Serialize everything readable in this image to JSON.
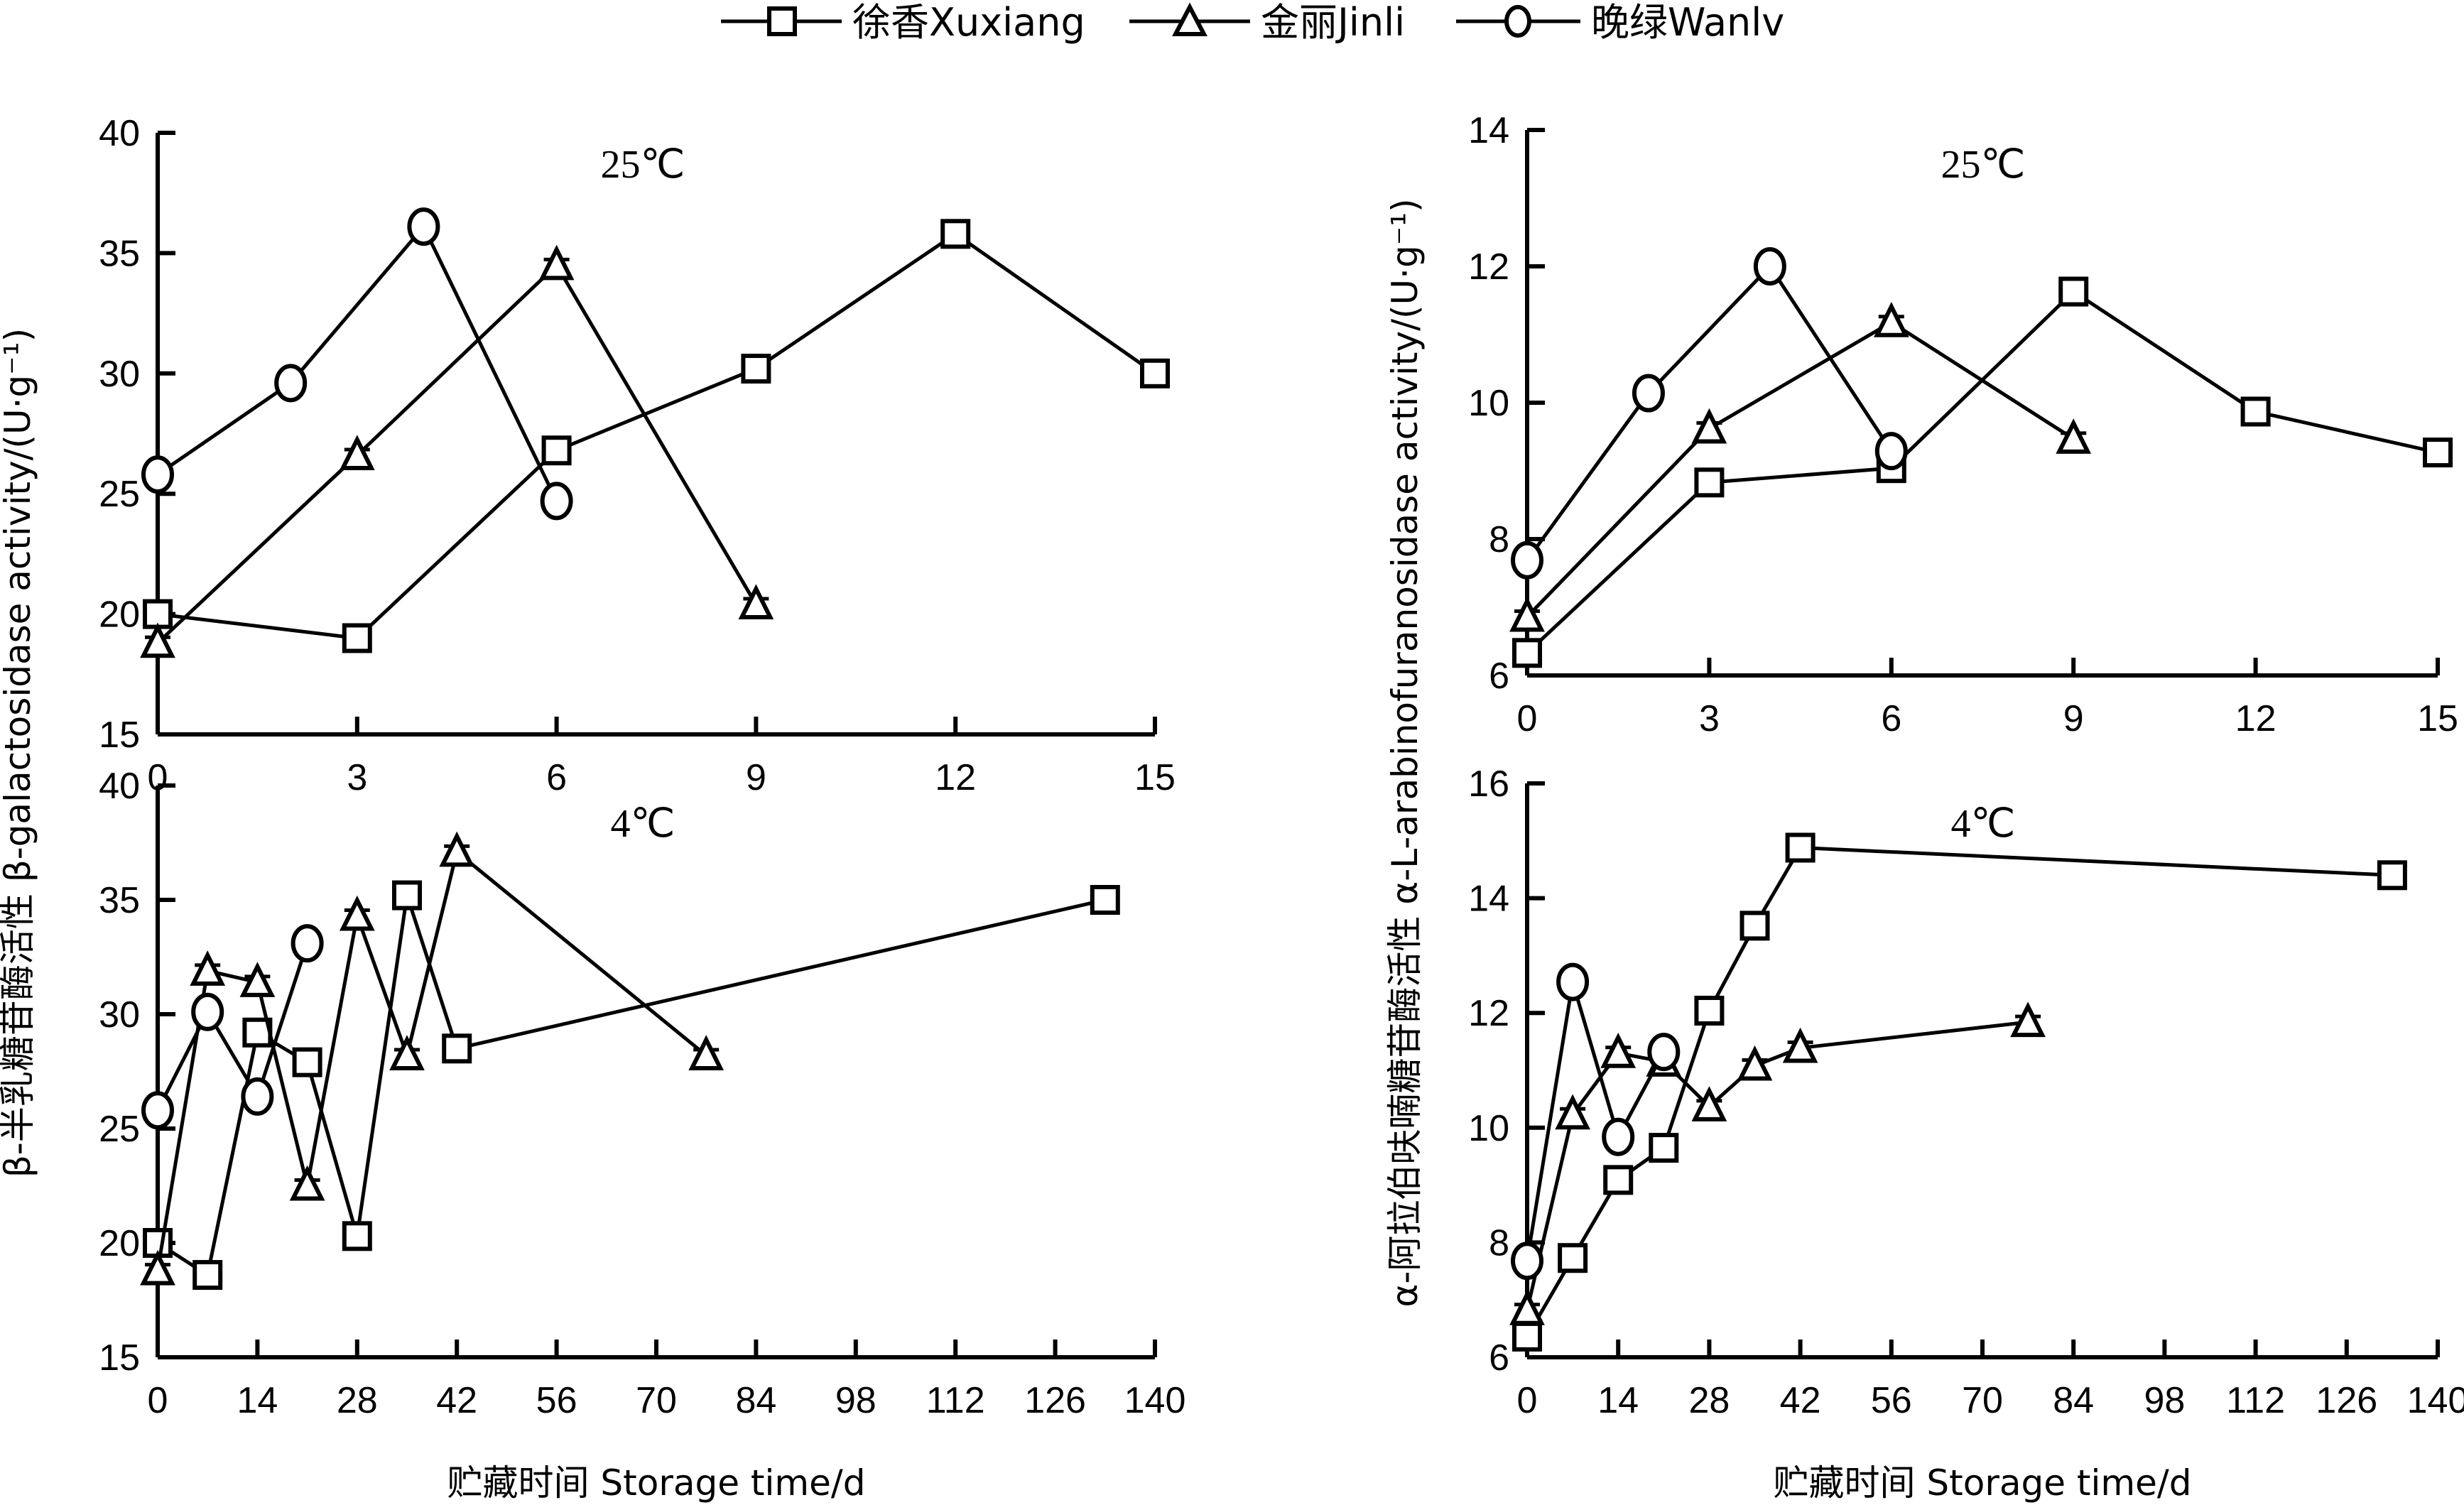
{
  "legend": {
    "items": [
      {
        "label": "徐香Xuxiang",
        "marker": "square"
      },
      {
        "label": "金丽Jinli",
        "marker": "triangle"
      },
      {
        "label": "晚绿Wanlv",
        "marker": "circle"
      }
    ]
  },
  "ylabels": {
    "left": "β-半乳糖苷酶活性 β-galactosidase activity/(U·g⁻¹)",
    "right": "α-阿拉伯呋喃糖苷酶活性 α-L-arabinofuranosidase activity/(U·g⁻¹)"
  },
  "xlabel": "贮藏时间 Storage time/d",
  "chart_data": [
    {
      "id": "tl",
      "type": "line",
      "title": "25℃",
      "xlabel": "",
      "ylabel": "β-galactosidase activity/(U·g⁻¹)",
      "xlim": [
        0,
        15
      ],
      "ylim": [
        15,
        40
      ],
      "xticks": [
        0,
        3,
        6,
        9,
        12,
        15
      ],
      "yticks": [
        15,
        20,
        25,
        30,
        35,
        40
      ],
      "grid": false,
      "series": [
        {
          "name": "徐香Xuxiang",
          "marker": "square",
          "x": [
            0,
            3,
            6,
            9,
            12,
            15
          ],
          "y": [
            20.0,
            19.0,
            26.8,
            30.2,
            35.8,
            30.0
          ]
        },
        {
          "name": "金丽Jinli",
          "marker": "triangle",
          "x": [
            0,
            3,
            6,
            9
          ],
          "y": [
            18.8,
            26.6,
            34.5,
            20.4
          ]
        },
        {
          "name": "晚绿Wanlv",
          "marker": "circle",
          "x": [
            0,
            2,
            4,
            6
          ],
          "y": [
            25.8,
            29.6,
            36.1,
            24.7
          ]
        }
      ]
    },
    {
      "id": "tr",
      "type": "line",
      "title": "25℃",
      "xlabel": "",
      "ylabel": "α-L-arabinofuranosidase activity/(U·g⁻¹)",
      "xlim": [
        0,
        15
      ],
      "ylim": [
        6,
        14
      ],
      "xticks": [
        0,
        3,
        6,
        9,
        12,
        15
      ],
      "yticks": [
        6,
        8,
        10,
        12,
        14
      ],
      "grid": false,
      "series": [
        {
          "name": "徐香Xuxiang",
          "marker": "square",
          "x": [
            0,
            3,
            6,
            9,
            12,
            15
          ],
          "y": [
            6.33,
            8.83,
            9.04,
            11.63,
            9.87,
            9.27
          ]
        },
        {
          "name": "金丽Jinli",
          "marker": "triangle",
          "x": [
            0,
            3,
            6,
            9
          ],
          "y": [
            6.86,
            9.62,
            11.18,
            9.47
          ]
        },
        {
          "name": "晚绿Wanlv",
          "marker": "circle",
          "x": [
            0,
            2,
            4,
            6
          ],
          "y": [
            7.69,
            10.14,
            12.0,
            9.29
          ]
        }
      ]
    },
    {
      "id": "bl",
      "type": "line",
      "title": "4℃",
      "xlabel": "贮藏时间 Storage time/d",
      "ylabel": "β-galactosidase activity/(U·g⁻¹)",
      "xlim": [
        0,
        140
      ],
      "ylim": [
        15,
        40
      ],
      "xticks": [
        0,
        14,
        28,
        42,
        56,
        70,
        84,
        98,
        112,
        126,
        140
      ],
      "yticks": [
        15,
        20,
        25,
        30,
        35,
        40
      ],
      "grid": false,
      "series": [
        {
          "name": "徐香Xuxiang",
          "marker": "square",
          "x": [
            0,
            7,
            14,
            21,
            28,
            35,
            42,
            133
          ],
          "y": [
            20.0,
            18.6,
            29.2,
            27.9,
            20.3,
            35.2,
            28.5,
            35.0
          ]
        },
        {
          "name": "金丽Jinli",
          "marker": "triangle",
          "x": [
            0,
            7,
            14,
            21,
            28,
            35,
            42,
            77
          ],
          "y": [
            18.8,
            31.9,
            31.4,
            22.5,
            34.3,
            28.2,
            37.1,
            28.2
          ]
        },
        {
          "name": "晚绿Wanlv",
          "marker": "circle",
          "x": [
            0,
            7,
            14,
            21
          ],
          "y": [
            25.8,
            30.1,
            26.4,
            33.1
          ]
        }
      ]
    },
    {
      "id": "br",
      "type": "line",
      "title": "4℃",
      "xlabel": "贮藏时间 Storage time/d",
      "ylabel": "α-L-arabinofuranosidase activity/(U·g⁻¹)",
      "xlim": [
        0,
        140
      ],
      "ylim": [
        6,
        16
      ],
      "xticks": [
        0,
        14,
        28,
        42,
        56,
        70,
        84,
        98,
        112,
        126,
        140
      ],
      "yticks": [
        6,
        8,
        10,
        12,
        14,
        16
      ],
      "grid": false,
      "series": [
        {
          "name": "徐香Xuxiang",
          "marker": "square",
          "x": [
            0,
            7,
            14,
            21,
            28,
            35,
            42,
            133
          ],
          "y": [
            6.36,
            7.73,
            9.09,
            9.65,
            12.04,
            13.52,
            14.88,
            14.4
          ]
        },
        {
          "name": "金丽Jinli",
          "marker": "triangle",
          "x": [
            0,
            7,
            14,
            21,
            28,
            35,
            42,
            77
          ],
          "y": [
            6.82,
            10.23,
            11.3,
            11.15,
            10.37,
            11.08,
            11.39,
            11.84
          ]
        },
        {
          "name": "晚绿Wanlv",
          "marker": "circle",
          "x": [
            0,
            7,
            14,
            21
          ],
          "y": [
            7.68,
            12.54,
            9.84,
            11.32
          ]
        }
      ]
    }
  ]
}
